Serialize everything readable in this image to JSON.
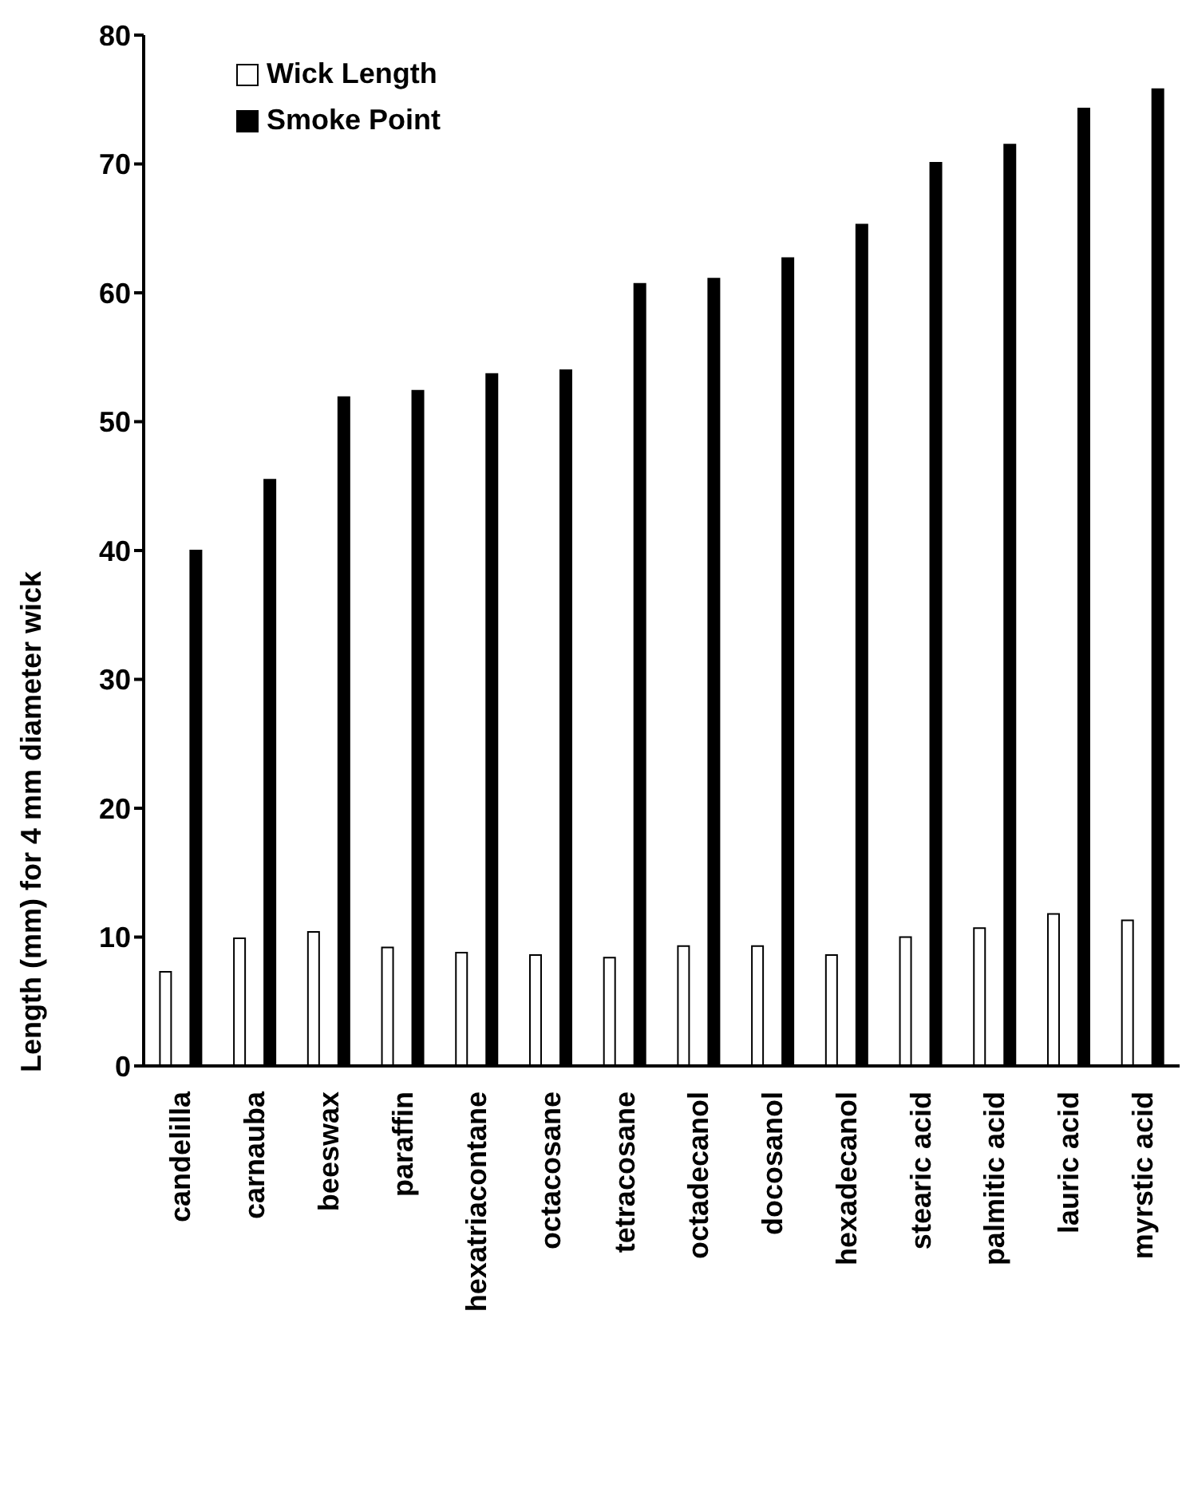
{
  "chart_data": {
    "type": "bar",
    "ylabel": "Length (mm) for 4 mm diameter wick",
    "categories": [
      "candelilla",
      "carnauba",
      "beeswax",
      "paraffin",
      "hexatriacontane",
      "octacosane",
      "tetracosane",
      "octadecanol",
      "docosanol",
      "hexadecanol",
      "stearic acid",
      "palmitic acid",
      "lauric acid",
      "myrstic acid"
    ],
    "series": [
      {
        "name": "Wick Length",
        "color": "#ffffff",
        "values": [
          7.3,
          9.9,
          10.4,
          9.2,
          8.8,
          8.6,
          8.4,
          9.3,
          9.3,
          8.6,
          10.0,
          10.7,
          11.8,
          11.3
        ]
      },
      {
        "name": "Smoke Point",
        "color": "#000000",
        "values": [
          40.0,
          45.5,
          51.9,
          52.4,
          53.7,
          54.0,
          60.7,
          61.1,
          62.7,
          65.3,
          70.1,
          71.5,
          74.3,
          75.8
        ]
      }
    ],
    "ylim": [
      0,
      80
    ],
    "yticks": [
      0,
      10,
      20,
      30,
      40,
      50,
      60,
      70,
      80
    ],
    "grid": false,
    "legend": "top left"
  }
}
